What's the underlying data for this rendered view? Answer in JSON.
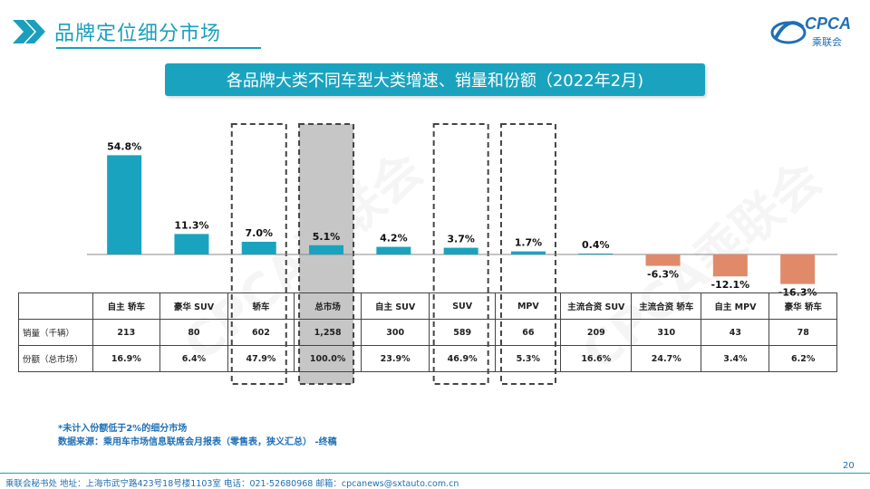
{
  "header": {
    "title": "品牌定位细分市场"
  },
  "logo": {
    "text": "CPCA",
    "sub": "乘联会"
  },
  "watermark": "CPCA乘联会",
  "colors": {
    "accent": "#1a9fbd",
    "positive_bar": "#1aa3bf",
    "negative_bar": "#e08a6a",
    "highlight_fill": "#c6c6c6"
  },
  "chart_data": {
    "type": "bar",
    "title": "各品牌大类不同车型大类增速、销量和份额（2022年2月)",
    "categories": [
      "自主 轿车",
      "豪华 SUV",
      "轿车",
      "总市场",
      "自主 SUV",
      "SUV",
      "MPV",
      "主流合资 SUV",
      "主流合资 轿车",
      "自主 MPV",
      "豪华 轿车"
    ],
    "values": [
      54.8,
      11.3,
      7.0,
      5.1,
      4.2,
      3.7,
      1.7,
      0.4,
      -6.3,
      -12.1,
      -16.3
    ],
    "value_labels": [
      "54.8%",
      "11.3%",
      "7.0%",
      "5.1%",
      "4.2%",
      "3.7%",
      "1.7%",
      "0.4%",
      "-6.3%",
      "-12.1%",
      "-16.3%"
    ],
    "highlighted": [
      "轿车",
      "总市场",
      "SUV",
      "MPV"
    ],
    "filled_highlight": [
      "总市场"
    ],
    "table": {
      "rows": [
        {
          "label": "销量（千辆）",
          "values": [
            "213",
            "80",
            "602",
            "1,258",
            "300",
            "589",
            "66",
            "209",
            "310",
            "43",
            "78"
          ]
        },
        {
          "label": "份额（总市场）",
          "values": [
            "16.9%",
            "6.4%",
            "47.9%",
            "100.0%",
            "23.9%",
            "46.9%",
            "5.3%",
            "16.6%",
            "24.7%",
            "3.4%",
            "6.2%"
          ]
        }
      ]
    }
  },
  "notes": {
    "line1": "*未计入份额低于2%的细分市场",
    "line2": "数据来源：乘用车市场信息联席会月报表（零售表，狭义汇总） -终稿"
  },
  "footer": {
    "text": "乘联会秘书处   地址：上海市武宁路423号18号楼1103室   电话：021-52680968   邮箱：cpcanews@sxtauto.com.cn"
  },
  "page_number": "20"
}
